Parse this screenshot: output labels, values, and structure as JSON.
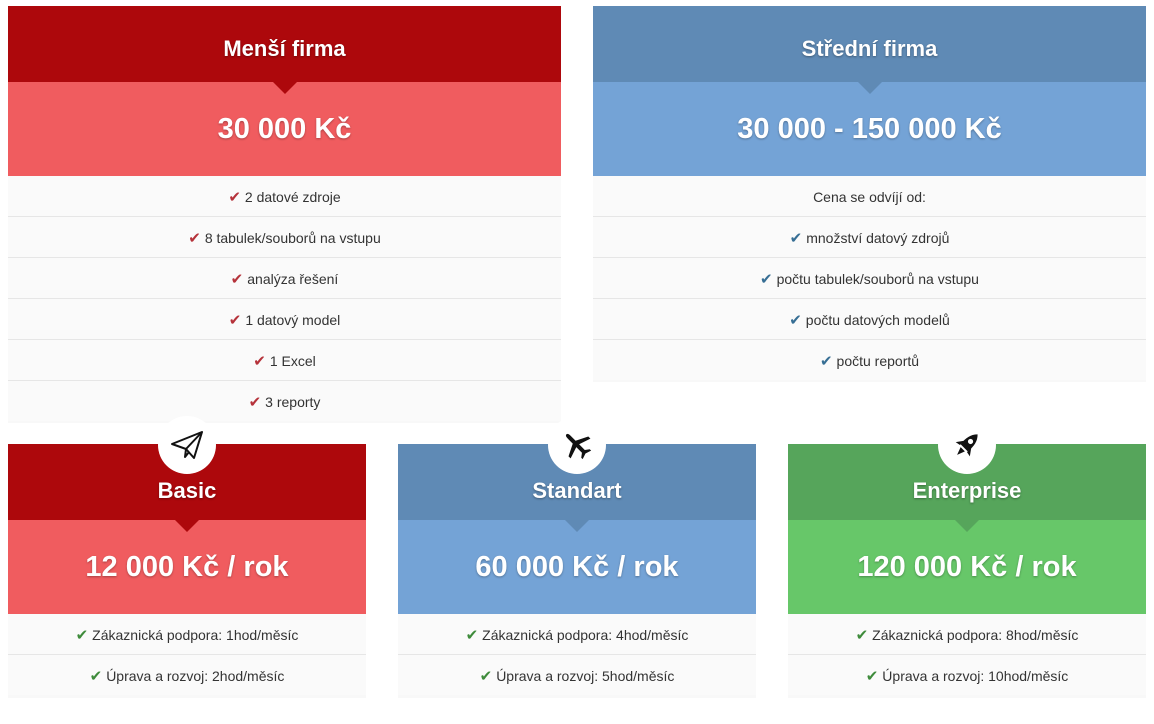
{
  "top_cards": [
    {
      "title": "Menší firma",
      "price": "30 000 Kč",
      "rows": [
        "2 datové zdroje",
        "8 tabulek/souborů na vstupu",
        "analýza řešení",
        "1 datový model",
        "1 Excel",
        "3 reporty"
      ]
    },
    {
      "title": "Střední firma",
      "price": "30 000 - 150 000 Kč",
      "intro": "Cena se odvíjí od:",
      "rows": [
        "množství datový zdrojů",
        "počtu tabulek/souborů na vstupu",
        "počtu datových modelů",
        "počtu reportů"
      ]
    }
  ],
  "plans": [
    {
      "title": "Basic",
      "icon": "paper-plane-icon",
      "price": "12 000 Kč / rok",
      "rows": [
        "Zákaznická podpora: 1hod/měsíc",
        "Úprava a rozvoj: 2hod/měsíc"
      ]
    },
    {
      "title": "Standart",
      "icon": "airplane-icon",
      "price": "60 000 Kč / rok",
      "rows": [
        "Zákaznická podpora: 4hod/měsíc",
        "Úprava a rozvoj: 5hod/měsíc"
      ]
    },
    {
      "title": "Enterprise",
      "icon": "rocket-icon",
      "price": "120 000 Kč / rok",
      "rows": [
        "Zákaznická podpora: 8hod/měsíc",
        "Úprava a rozvoj: 10hod/měsíc"
      ]
    }
  ],
  "colors": {
    "red_head": "#ad080c",
    "red_price": "#f05c5f",
    "blue_head": "#5f8ab5",
    "blue_price": "#74a3d6",
    "green_head": "#56a55b",
    "green_price": "#67c769"
  }
}
